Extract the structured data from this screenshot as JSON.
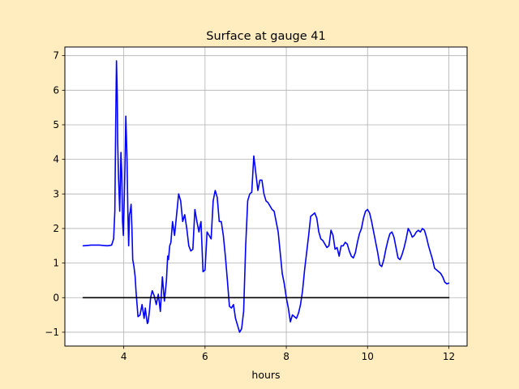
{
  "chart_data": {
    "type": "line",
    "title": "Surface at gauge 41",
    "xlabel": "hours",
    "ylabel": "",
    "xlim": [
      2.55,
      12.45
    ],
    "ylim": [
      -1.4,
      7.25
    ],
    "xticks": [
      4,
      6,
      8,
      10,
      12
    ],
    "yticks": [
      -1,
      0,
      1,
      2,
      3,
      4,
      5,
      6,
      7
    ],
    "grid": true,
    "colors": {
      "figure_bg": "#ffedc0",
      "axes_bg": "#ffffff",
      "surface": "#0000ff",
      "reference": "#000000",
      "grid": "#b0b0b0"
    },
    "series": [
      {
        "color": "#0000ff",
        "x": [
          3.0,
          3.2,
          3.4,
          3.6,
          3.7,
          3.75,
          3.78,
          3.8,
          3.82,
          3.84,
          3.85,
          3.87,
          3.9,
          3.93,
          3.95,
          3.97,
          3.99,
          4.03,
          4.05,
          4.08,
          4.1,
          4.12,
          4.14,
          4.16,
          4.18,
          4.2,
          4.22,
          4.25,
          4.28,
          4.3,
          4.35,
          4.4,
          4.45,
          4.5,
          4.53,
          4.55,
          4.58,
          4.6,
          4.63,
          4.66,
          4.7,
          4.75,
          4.8,
          4.85,
          4.9,
          4.95,
          5.0,
          5.05,
          5.08,
          5.1,
          5.13,
          5.16,
          5.2,
          5.25,
          5.3,
          5.35,
          5.4,
          5.45,
          5.5,
          5.55,
          5.6,
          5.65,
          5.7,
          5.75,
          5.8,
          5.85,
          5.88,
          5.9,
          5.95,
          6.0,
          6.05,
          6.1,
          6.15,
          6.2,
          6.25,
          6.3,
          6.35,
          6.4,
          6.45,
          6.5,
          6.55,
          6.6,
          6.65,
          6.7,
          6.75,
          6.8,
          6.85,
          6.9,
          6.95,
          7.0,
          7.05,
          7.1,
          7.15,
          7.2,
          7.25,
          7.3,
          7.35,
          7.4,
          7.45,
          7.5,
          7.55,
          7.6,
          7.65,
          7.7,
          7.75,
          7.8,
          7.85,
          7.9,
          7.95,
          8.0,
          8.05,
          8.1,
          8.15,
          8.2,
          8.25,
          8.3,
          8.35,
          8.4,
          8.45,
          8.5,
          8.55,
          8.6,
          8.65,
          8.7,
          8.75,
          8.8,
          8.85,
          8.9,
          8.95,
          9.0,
          9.05,
          9.1,
          9.15,
          9.2,
          9.25,
          9.3,
          9.35,
          9.4,
          9.45,
          9.5,
          9.55,
          9.6,
          9.65,
          9.7,
          9.75,
          9.8,
          9.85,
          9.9,
          9.95,
          10.0,
          10.05,
          10.1,
          10.15,
          10.2,
          10.25,
          10.3,
          10.35,
          10.4,
          10.45,
          10.5,
          10.55,
          10.6,
          10.65,
          10.7,
          10.75,
          10.8,
          10.85,
          10.9,
          10.95,
          11.0,
          11.05,
          11.1,
          11.15,
          11.2,
          11.25,
          11.3,
          11.35,
          11.4,
          11.45,
          11.5,
          11.55,
          11.6,
          11.65,
          11.7,
          11.75,
          11.8,
          11.85,
          11.9,
          11.95,
          12.0
        ],
        "y": [
          1.5,
          1.52,
          1.52,
          1.5,
          1.52,
          1.7,
          2.5,
          4.9,
          6.85,
          5.8,
          4.5,
          3.5,
          2.5,
          4.2,
          3.6,
          2.2,
          1.8,
          3.8,
          5.25,
          4.0,
          2.5,
          1.5,
          2.4,
          2.5,
          2.7,
          2.0,
          1.1,
          0.9,
          0.6,
          0.2,
          -0.55,
          -0.5,
          -0.2,
          -0.6,
          -0.3,
          -0.5,
          -0.75,
          -0.7,
          -0.4,
          0.0,
          0.2,
          0.05,
          -0.2,
          0.1,
          -0.4,
          0.6,
          -0.1,
          0.5,
          1.2,
          1.1,
          1.5,
          1.6,
          2.2,
          1.8,
          2.4,
          3.0,
          2.8,
          2.2,
          2.4,
          2.0,
          1.5,
          1.35,
          1.4,
          2.55,
          2.2,
          1.9,
          2.1,
          2.2,
          0.75,
          0.8,
          1.9,
          1.8,
          1.7,
          2.8,
          3.1,
          2.9,
          2.2,
          2.2,
          1.8,
          1.2,
          0.5,
          -0.25,
          -0.3,
          -0.2,
          -0.6,
          -0.8,
          -1.0,
          -0.9,
          -0.4,
          1.5,
          2.8,
          3.0,
          3.05,
          4.1,
          3.6,
          3.1,
          3.4,
          3.4,
          3.0,
          2.8,
          2.75,
          2.65,
          2.55,
          2.5,
          2.2,
          1.9,
          1.3,
          0.7,
          0.4,
          0.0,
          -0.3,
          -0.7,
          -0.5,
          -0.55,
          -0.6,
          -0.45,
          -0.2,
          0.2,
          0.8,
          1.3,
          1.8,
          2.35,
          2.4,
          2.45,
          2.3,
          1.9,
          1.7,
          1.65,
          1.55,
          1.45,
          1.5,
          1.95,
          1.8,
          1.4,
          1.45,
          1.2,
          1.5,
          1.5,
          1.6,
          1.55,
          1.35,
          1.2,
          1.15,
          1.3,
          1.6,
          1.85,
          2.0,
          2.3,
          2.5,
          2.55,
          2.45,
          2.2,
          1.9,
          1.6,
          1.3,
          0.95,
          0.9,
          1.1,
          1.4,
          1.65,
          1.85,
          1.9,
          1.75,
          1.45,
          1.15,
          1.1,
          1.25,
          1.45,
          1.7,
          2.0,
          1.9,
          1.75,
          1.8,
          1.9,
          1.95,
          1.9,
          2.0,
          1.95,
          1.75,
          1.5,
          1.3,
          1.1,
          0.85,
          0.8,
          0.75,
          0.7,
          0.6,
          0.45,
          0.4,
          0.42
        ]
      },
      {
        "color": "#000000",
        "x": [
          3.0,
          12.0
        ],
        "y": [
          0.0,
          0.0
        ]
      }
    ]
  }
}
